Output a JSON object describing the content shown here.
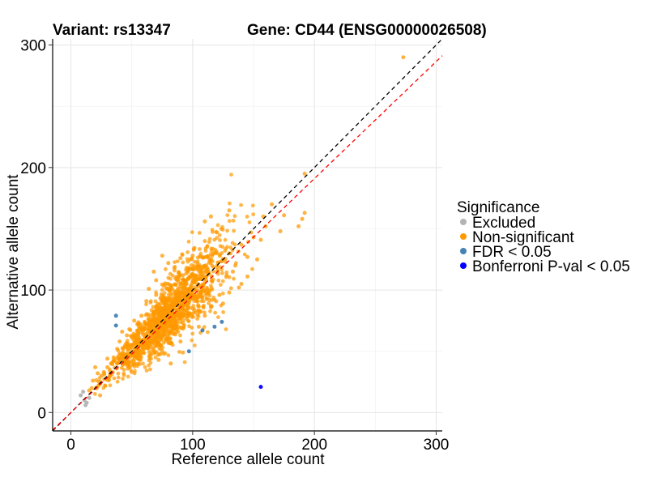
{
  "chart_data": {
    "type": "scatter",
    "title_left": "Variant: rs13347",
    "title_right": "Gene: CD44 (ENSG00000026508)",
    "xlabel": "Reference allele count",
    "ylabel": "Alternative allele count",
    "xlim": [
      -15,
      305
    ],
    "ylim": [
      -15,
      305
    ],
    "xticks": [
      0,
      100,
      200,
      300
    ],
    "yticks": [
      0,
      100,
      200,
      300
    ],
    "grid": true,
    "legend": {
      "title": "Significance",
      "position": "right",
      "entries": [
        {
          "label": "Excluded",
          "color": "#B3B3B3"
        },
        {
          "label": "Non-significant",
          "color": "#FF9900"
        },
        {
          "label": "FDR < 0.05",
          "color": "#4682B4"
        },
        {
          "label": "Bonferroni P-val < 0.05",
          "color": "#0000FF"
        }
      ]
    },
    "reference_lines": [
      {
        "name": "identity",
        "slope": 1.0,
        "intercept": 0,
        "color": "#000000",
        "style": "dashed"
      },
      {
        "name": "fit",
        "slope": 0.955,
        "intercept": 0,
        "color": "#FF0000",
        "style": "dashed"
      }
    ],
    "series": [
      {
        "name": "Excluded",
        "color": "#B3B3B3",
        "points": [
          [
            10,
            17
          ],
          [
            11,
            10
          ],
          [
            13,
            8
          ],
          [
            15,
            12
          ],
          [
            8,
            14
          ],
          [
            12,
            6
          ]
        ]
      },
      {
        "name": "FDR < 0.05",
        "color": "#4682B4",
        "points": [
          [
            37,
            79
          ],
          [
            37,
            71
          ],
          [
            97,
            50
          ],
          [
            108,
            67
          ],
          [
            118,
            70
          ],
          [
            124,
            74
          ]
        ]
      },
      {
        "name": "Bonferroni P-val < 0.05",
        "color": "#0000FF",
        "points": [
          [
            156,
            21
          ]
        ]
      },
      {
        "name": "Non-significant",
        "color": "#FF9900",
        "points": [
          [
            273,
            290
          ],
          [
            192,
            195
          ],
          [
            187,
            152
          ],
          [
            190,
            158
          ],
          [
            192,
            163
          ],
          [
            175,
            161
          ],
          [
            172,
            148
          ],
          [
            165,
            170
          ],
          [
            160,
            152
          ],
          [
            158,
            160
          ],
          [
            156,
            141
          ],
          [
            150,
            143
          ],
          [
            148,
            147
          ],
          [
            145,
            127
          ],
          [
            140,
            137
          ],
          [
            130,
            165
          ],
          [
            120,
            147
          ],
          [
            115,
            160
          ],
          [
            110,
            156
          ],
          [
            135,
            120
          ],
          [
            128,
            112
          ],
          [
            153,
            125
          ],
          [
            145,
            111
          ],
          [
            140,
            105
          ],
          [
            133,
            115
          ],
          [
            120,
            130
          ],
          [
            125,
            125
          ],
          [
            110,
            140
          ],
          [
            100,
            128
          ],
          [
            95,
            118
          ],
          [
            20,
            37
          ],
          [
            22,
            32
          ],
          [
            18,
            26
          ],
          [
            15,
            18
          ],
          [
            25,
            30
          ],
          [
            28,
            22
          ],
          [
            30,
            37
          ],
          [
            33,
            40
          ],
          [
            35,
            45
          ],
          [
            40,
            48
          ],
          [
            30,
            44
          ],
          [
            45,
            54
          ],
          [
            40,
            58
          ],
          [
            50,
            62
          ],
          [
            55,
            59
          ],
          [
            38,
            52
          ],
          [
            62,
            91
          ],
          [
            64,
            101
          ],
          [
            70,
            108
          ],
          [
            68,
            115
          ],
          [
            75,
            128
          ],
          [
            80,
            122
          ],
          [
            85,
            118
          ],
          [
            90,
            126
          ],
          [
            100,
            113
          ],
          [
            95,
            105
          ],
          [
            62,
            64
          ],
          [
            58,
            79
          ],
          [
            48,
            68
          ],
          [
            72,
            43
          ],
          [
            75,
            50
          ],
          [
            82,
            40
          ],
          [
            90,
            58
          ],
          [
            92,
            49
          ],
          [
            105,
            70
          ],
          [
            110,
            79
          ],
          [
            115,
            87
          ],
          [
            118,
            92
          ],
          [
            122,
            96
          ],
          [
            125,
            89
          ],
          [
            130,
            98
          ],
          [
            138,
            102
          ],
          [
            52,
            75
          ],
          [
            46,
            63
          ],
          [
            42,
            66
          ],
          [
            24,
            14
          ],
          [
            17,
            20
          ],
          [
            27,
            33
          ],
          [
            60,
            52
          ],
          [
            65,
            47
          ],
          [
            88,
            66
          ],
          [
            78,
            60
          ],
          [
            70,
            96
          ],
          [
            82,
            104
          ],
          [
            92,
            112
          ],
          [
            102,
            96
          ],
          [
            108,
            103
          ],
          [
            112,
            118
          ],
          [
            85,
            92
          ],
          [
            95,
            88
          ]
        ]
      }
    ],
    "cloud": {
      "color": "#FF9900",
      "count": 1400,
      "x_mean": 80,
      "x_sd": 24,
      "ratio_sd": 0.16,
      "seed": 13347
    }
  }
}
